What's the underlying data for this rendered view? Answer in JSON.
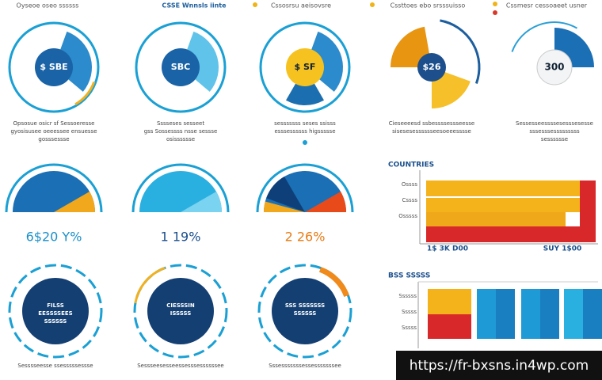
{
  "header": [
    "Oyseoe oseo ssssss",
    "CSSE Wnnsls iinte",
    "Cssosrsu aeisovsre",
    "Cssttoes ebo srsssuisso",
    "Cssmesr cessoaeet usner"
  ],
  "circles": [
    {
      "label": "$ SBE",
      "caption": [
        "Opsosue osicr sf Sessoeresse",
        "gyosisusee oeeessee ensuesse",
        "gosssessse"
      ]
    },
    {
      "label": "SBC",
      "caption": [
        "Sssseses sesseet",
        "gss Sossessss nsse sessse",
        "osisssssse"
      ]
    },
    {
      "label": "$ SF",
      "caption": [
        "sesssssss seses ssisss",
        "esssessssss higssssse"
      ]
    },
    {
      "label": "$26",
      "caption": [
        "Cieseeeesd ssbessssessseesse",
        "sisesesesssssseesoeeesssse"
      ]
    },
    {
      "label": "300",
      "caption": [
        "Sessesseessssesesssesesse",
        "sssesssesssssssss",
        "sesssssse"
      ]
    }
  ],
  "gauges": [
    "6$20 Y%",
    "1 19%",
    "2 26%"
  ],
  "rings": [
    {
      "label": [
        "FILSS",
        "EESSSSEES",
        "SSSSSS"
      ],
      "caption": "Sesssseesse ssesssssessse"
    },
    {
      "label": [
        "CIESSSIN",
        "ISSSSS"
      ],
      "caption": "Sessseesesseessesssessssssee"
    },
    {
      "label": [
        "SSS SSSSSSS",
        "SSSSSS"
      ],
      "caption": "Sssesssssssessesssssssee"
    }
  ],
  "panel1": {
    "title": "COUNTRIES",
    "rows": [
      "Ossss",
      "Cssss",
      "Osssss"
    ],
    "footer": [
      "1$ 3K D00",
      "SUY 1$00"
    ]
  },
  "panel2": {
    "title": "BSS SSSSS",
    "rows": [
      "Ssssss",
      "Sssss",
      "Sssss"
    ]
  },
  "watermark": "https://fr-bxsns.in4wp.com"
}
